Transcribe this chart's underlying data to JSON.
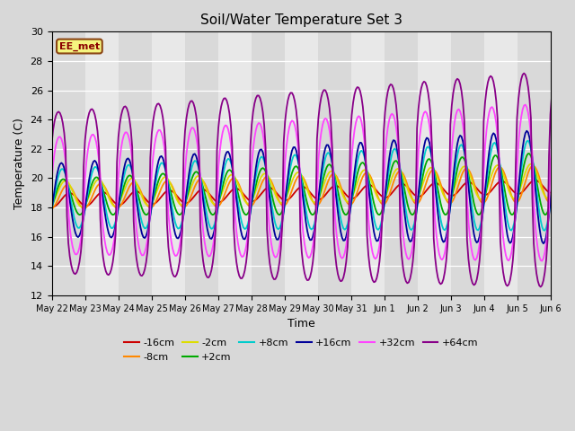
{
  "title": "Soil/Water Temperature Set 3",
  "xlabel": "Time",
  "ylabel": "Temperature (C)",
  "ylim": [
    12,
    30
  ],
  "background_color": "#d8d8d8",
  "plot_bg_color": "#e8e8e8",
  "watermark": "EE_met",
  "series": [
    {
      "label": "-16cm",
      "color": "#cc0000",
      "depth": -16
    },
    {
      "label": "-8cm",
      "color": "#ff8800",
      "depth": -8
    },
    {
      "label": "-2cm",
      "color": "#dddd00",
      "depth": -2
    },
    {
      "label": "+2cm",
      "color": "#00aa00",
      "depth": 2
    },
    {
      "label": "+8cm",
      "color": "#00cccc",
      "depth": 8
    },
    {
      "label": "+16cm",
      "color": "#000099",
      "depth": 16
    },
    {
      "label": "+32cm",
      "color": "#ff44ff",
      "depth": 32
    },
    {
      "label": "+64cm",
      "color": "#880088",
      "depth": 64
    }
  ],
  "xtick_labels": [
    "May 22",
    "May 23",
    "May 24",
    "May 25",
    "May 26",
    "May 27",
    "May 28",
    "May 29",
    "May 30",
    "May 31",
    "Jun 1",
    "Jun 2",
    "Jun 3",
    "Jun 4",
    "Jun 5",
    "Jun 6"
  ],
  "ytick_labels": [
    12,
    14,
    16,
    18,
    20,
    22,
    24,
    26,
    28,
    30
  ]
}
